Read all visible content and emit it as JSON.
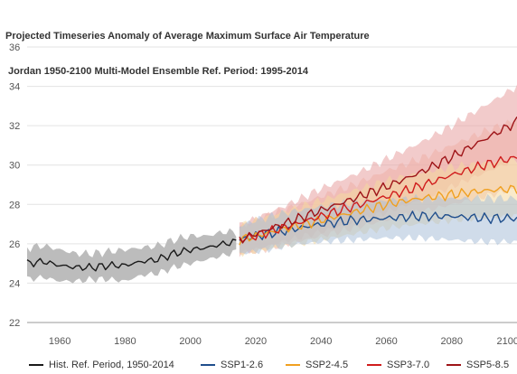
{
  "chart_data": {
    "type": "line",
    "title_line1": "Projected Timeseries Anomaly of Average Maximum Surface Air Temperature",
    "title_line2": " Jordan 1950-2100 Multi-Model Ensemble Ref. Period: 1995-2014",
    "xlim": [
      1950,
      2100
    ],
    "ylim": [
      22,
      36
    ],
    "x_ticks": [
      1960,
      1980,
      2000,
      2020,
      2040,
      2060,
      2080,
      2100
    ],
    "y_ticks": [
      22,
      24,
      26,
      28,
      30,
      32,
      34,
      36
    ],
    "grid": true,
    "legend_position": "bottom",
    "series": [
      {
        "name": "Hist. Ref. Period, 1950-2014",
        "color": "#1a1a1a",
        "band_color": "#b5b5b5",
        "x": [
          1950,
          1955,
          1960,
          1965,
          1970,
          1975,
          1980,
          1985,
          1990,
          1995,
          2000,
          2005,
          2010,
          2014
        ],
        "y": [
          25.0,
          25.1,
          24.9,
          24.8,
          24.8,
          24.9,
          24.9,
          25.1,
          25.2,
          25.5,
          25.7,
          25.8,
          26.0,
          26.1
        ],
        "lower": [
          24.2,
          24.3,
          24.1,
          24.1,
          24.2,
          24.2,
          24.1,
          24.4,
          24.5,
          24.8,
          25.0,
          25.2,
          25.4,
          25.6
        ],
        "upper": [
          25.8,
          25.9,
          25.7,
          25.5,
          25.5,
          25.6,
          25.7,
          25.8,
          25.9,
          26.2,
          26.4,
          26.4,
          26.6,
          26.6
        ]
      },
      {
        "name": "SSP1-2.6",
        "color": "#1f4e8c",
        "band_color": "#a9bfd8",
        "x": [
          2015,
          2020,
          2030,
          2040,
          2050,
          2060,
          2070,
          2080,
          2090,
          2100
        ],
        "y": [
          26.2,
          26.4,
          26.7,
          27.0,
          27.2,
          27.3,
          27.4,
          27.4,
          27.3,
          27.3
        ],
        "lower": [
          25.5,
          25.6,
          25.9,
          26.1,
          26.2,
          26.3,
          26.3,
          26.2,
          26.1,
          26.1
        ],
        "upper": [
          26.9,
          27.2,
          27.6,
          27.9,
          28.1,
          28.2,
          28.3,
          28.3,
          28.3,
          28.3
        ]
      },
      {
        "name": "SSP2-4.5",
        "color": "#f0a020",
        "band_color": "#f4d9a0",
        "x": [
          2015,
          2020,
          2030,
          2040,
          2050,
          2060,
          2070,
          2080,
          2090,
          2100
        ],
        "y": [
          26.2,
          26.4,
          26.8,
          27.2,
          27.6,
          28.0,
          28.3,
          28.5,
          28.7,
          28.8
        ],
        "lower": [
          25.5,
          25.6,
          25.9,
          26.2,
          26.5,
          26.8,
          27.0,
          27.2,
          27.3,
          27.4
        ],
        "upper": [
          26.9,
          27.2,
          27.7,
          28.2,
          28.7,
          29.2,
          29.6,
          29.9,
          30.1,
          30.3
        ]
      },
      {
        "name": "SSP3-7.0",
        "color": "#d01c1c",
        "band_color": "#eeb0a8",
        "x": [
          2015,
          2020,
          2030,
          2040,
          2050,
          2060,
          2070,
          2080,
          2090,
          2100
        ],
        "y": [
          26.2,
          26.4,
          26.9,
          27.4,
          27.9,
          28.4,
          28.9,
          29.5,
          30.0,
          30.4
        ],
        "lower": [
          25.5,
          25.6,
          26.0,
          26.4,
          26.8,
          27.2,
          27.6,
          28.0,
          28.4,
          28.8
        ],
        "upper": [
          26.9,
          27.2,
          27.8,
          28.4,
          29.0,
          29.7,
          30.3,
          31.0,
          31.7,
          32.3
        ]
      },
      {
        "name": "SSP5-8.5",
        "color": "#9e1418",
        "band_color": "#e7a0a0",
        "x": [
          2015,
          2020,
          2030,
          2040,
          2050,
          2060,
          2070,
          2080,
          2090,
          2100
        ],
        "y": [
          26.2,
          26.5,
          27.1,
          27.7,
          28.3,
          28.9,
          29.6,
          30.4,
          31.3,
          32.2
        ],
        "lower": [
          25.5,
          25.7,
          26.2,
          26.6,
          27.1,
          27.6,
          28.2,
          28.9,
          29.6,
          30.3
        ],
        "upper": [
          26.9,
          27.3,
          28.0,
          28.8,
          29.5,
          30.3,
          31.1,
          32.0,
          33.0,
          34.0
        ]
      }
    ]
  }
}
